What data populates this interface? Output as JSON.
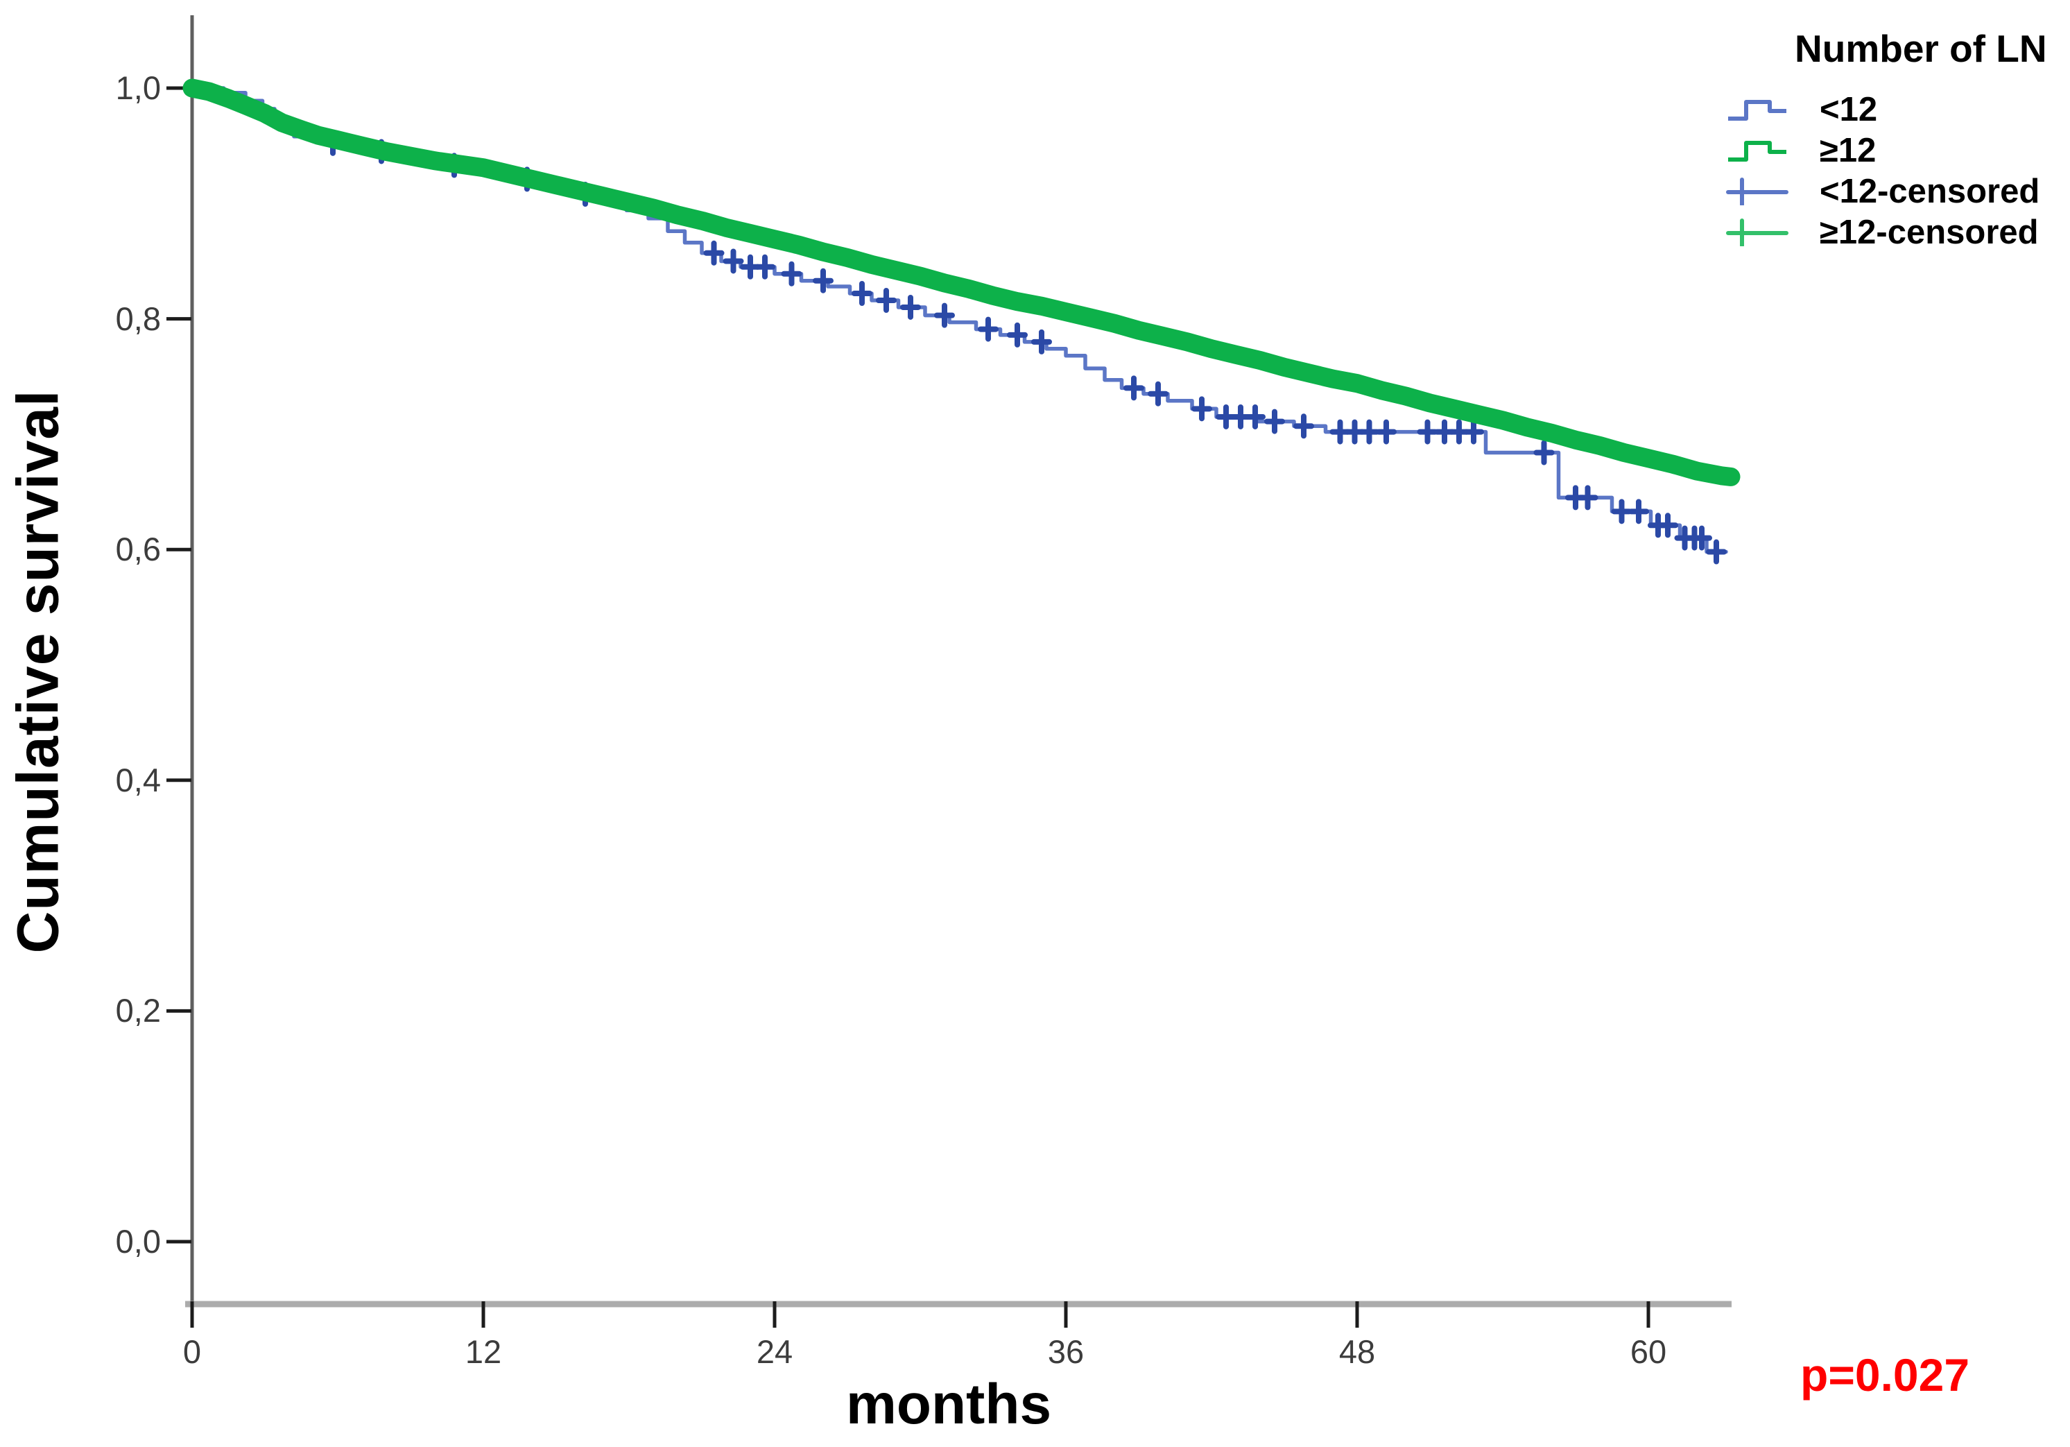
{
  "figure": {
    "y_axis": {
      "title": "Cumulative survival",
      "tick_labels": [
        "1,0",
        "0,8",
        "0,6",
        "0,4",
        "0,2",
        "0,0"
      ],
      "tick_values": [
        1.0,
        0.8,
        0.6,
        0.4,
        0.2,
        0.0
      ]
    },
    "x_axis": {
      "title": "months",
      "tick_labels": [
        "0",
        "12",
        "24",
        "36",
        "48",
        "60"
      ],
      "tick_values": [
        0,
        12,
        24,
        36,
        48,
        60
      ]
    },
    "annotation": {
      "p_value_text": "p=0.027",
      "color": "#ff0000"
    },
    "legend": {
      "title": "Number of LN",
      "items": [
        {
          "label": "<12",
          "type": "step",
          "color": "#5b76c6"
        },
        {
          "label": "≥12",
          "type": "step",
          "color": "#0db14a"
        },
        {
          "label": "<12-censored",
          "type": "censored",
          "color": "#5b76c6"
        },
        {
          "label": "≥12-censored",
          "type": "censored",
          "color": "#33c06a"
        }
      ]
    },
    "colors": {
      "axis_vertical": "#5f5f5f",
      "axis_horizontal": "#acacac",
      "tick": "#1c1c1c",
      "censor_mark_blue": "#2b49a6"
    }
  },
  "chart_data": {
    "type": "line",
    "subtype": "kaplan-meier-survival",
    "title": "",
    "xlabel": "months",
    "ylabel": "Cumulative survival",
    "xlim": [
      0,
      63.5
    ],
    "ylim": [
      0.0,
      1.0
    ],
    "x_ticks": [
      0,
      12,
      24,
      36,
      48,
      60
    ],
    "y_ticks": [
      0.0,
      0.2,
      0.4,
      0.6,
      0.8,
      1.0
    ],
    "grid": false,
    "legend_position": "top-right",
    "p_value": "p=0.027",
    "series": [
      {
        "name": "<12",
        "render": "step",
        "color": "#5b76c6",
        "line_width": 5.5,
        "points": [
          [
            0,
            1.0
          ],
          [
            1.3,
            0.996
          ],
          [
            2.2,
            0.989
          ],
          [
            2.9,
            0.982
          ],
          [
            3.4,
            0.974
          ],
          [
            3.8,
            0.965
          ],
          [
            4.2,
            0.958
          ],
          [
            5.5,
            0.952
          ],
          [
            7.0,
            0.945
          ],
          [
            8.5,
            0.939
          ],
          [
            10.0,
            0.933
          ],
          [
            11.5,
            0.927
          ],
          [
            13.0,
            0.921
          ],
          [
            14.5,
            0.914
          ],
          [
            15.8,
            0.908
          ],
          [
            16.9,
            0.901
          ],
          [
            17.9,
            0.894
          ],
          [
            18.8,
            0.887
          ],
          [
            19.6,
            0.876
          ],
          [
            20.3,
            0.866
          ],
          [
            21.0,
            0.857
          ],
          [
            21.8,
            0.85
          ],
          [
            22.6,
            0.845
          ],
          [
            24.0,
            0.839
          ],
          [
            25.1,
            0.833
          ],
          [
            26.2,
            0.828
          ],
          [
            27.1,
            0.822
          ],
          [
            28.0,
            0.816
          ],
          [
            29.1,
            0.81
          ],
          [
            30.2,
            0.803
          ],
          [
            31.2,
            0.797
          ],
          [
            32.3,
            0.791
          ],
          [
            33.3,
            0.786
          ],
          [
            34.3,
            0.78
          ],
          [
            35.2,
            0.774
          ],
          [
            36.0,
            0.768
          ],
          [
            36.8,
            0.757
          ],
          [
            37.6,
            0.747
          ],
          [
            38.3,
            0.74
          ],
          [
            39.2,
            0.735
          ],
          [
            40.2,
            0.729
          ],
          [
            41.2,
            0.722
          ],
          [
            42.2,
            0.715
          ],
          [
            43.9,
            0.711
          ],
          [
            45.4,
            0.707
          ],
          [
            46.7,
            0.702
          ],
          [
            53.3,
            0.684
          ],
          [
            56.3,
            0.645
          ],
          [
            58.5,
            0.633
          ],
          [
            60.1,
            0.621
          ],
          [
            61.3,
            0.61
          ],
          [
            62.4,
            0.598
          ],
          [
            63.2,
            0.598
          ]
        ],
        "censored_months": [
          5.8,
          7.8,
          10.8,
          13.8,
          16.2,
          21.5,
          22.3,
          23.0,
          23.6,
          24.7,
          26.0,
          27.6,
          28.6,
          29.6,
          31.0,
          32.8,
          34.0,
          35.0,
          38.8,
          39.8,
          41.6,
          42.6,
          43.2,
          43.8,
          44.6,
          45.8,
          47.3,
          47.9,
          48.5,
          49.2,
          50.9,
          51.6,
          52.2,
          52.8,
          55.7,
          57.0,
          57.5,
          58.9,
          59.6,
          60.4,
          60.8,
          61.5,
          61.9,
          62.2,
          62.8
        ]
      },
      {
        "name": "≥12",
        "render": "line",
        "color": "#0db14a",
        "line_width": 27,
        "points": [
          [
            0,
            1.0
          ],
          [
            0.7,
            0.997
          ],
          [
            1.5,
            0.991
          ],
          [
            2.2,
            0.985
          ],
          [
            3.0,
            0.978
          ],
          [
            3.7,
            0.97
          ],
          [
            4.5,
            0.964
          ],
          [
            5.2,
            0.959
          ],
          [
            6.0,
            0.955
          ],
          [
            7,
            0.95
          ],
          [
            8,
            0.945
          ],
          [
            9,
            0.941
          ],
          [
            10,
            0.937
          ],
          [
            11,
            0.934
          ],
          [
            12,
            0.931
          ],
          [
            13,
            0.926
          ],
          [
            14,
            0.921
          ],
          [
            15,
            0.916
          ],
          [
            16,
            0.911
          ],
          [
            17,
            0.906
          ],
          [
            18,
            0.901
          ],
          [
            19,
            0.896
          ],
          [
            20,
            0.89
          ],
          [
            21,
            0.885
          ],
          [
            22,
            0.879
          ],
          [
            23,
            0.874
          ],
          [
            24,
            0.869
          ],
          [
            25,
            0.864
          ],
          [
            26,
            0.858
          ],
          [
            27,
            0.853
          ],
          [
            28,
            0.847
          ],
          [
            29,
            0.842
          ],
          [
            30,
            0.837
          ],
          [
            31,
            0.831
          ],
          [
            32,
            0.826
          ],
          [
            33,
            0.82
          ],
          [
            34,
            0.815
          ],
          [
            35,
            0.811
          ],
          [
            36,
            0.806
          ],
          [
            37,
            0.801
          ],
          [
            38,
            0.796
          ],
          [
            39,
            0.79
          ],
          [
            40,
            0.785
          ],
          [
            41,
            0.78
          ],
          [
            42,
            0.774
          ],
          [
            43,
            0.769
          ],
          [
            44,
            0.764
          ],
          [
            45,
            0.758
          ],
          [
            46,
            0.753
          ],
          [
            47,
            0.748
          ],
          [
            48,
            0.744
          ],
          [
            49,
            0.738
          ],
          [
            50,
            0.733
          ],
          [
            51,
            0.727
          ],
          [
            52,
            0.722
          ],
          [
            53,
            0.717
          ],
          [
            54,
            0.712
          ],
          [
            55,
            0.706
          ],
          [
            56,
            0.701
          ],
          [
            57,
            0.695
          ],
          [
            58,
            0.69
          ],
          [
            59,
            0.684
          ],
          [
            60,
            0.679
          ],
          [
            61,
            0.674
          ],
          [
            62,
            0.668
          ],
          [
            63,
            0.664
          ],
          [
            63.4,
            0.663
          ]
        ],
        "censored_months": []
      }
    ]
  }
}
